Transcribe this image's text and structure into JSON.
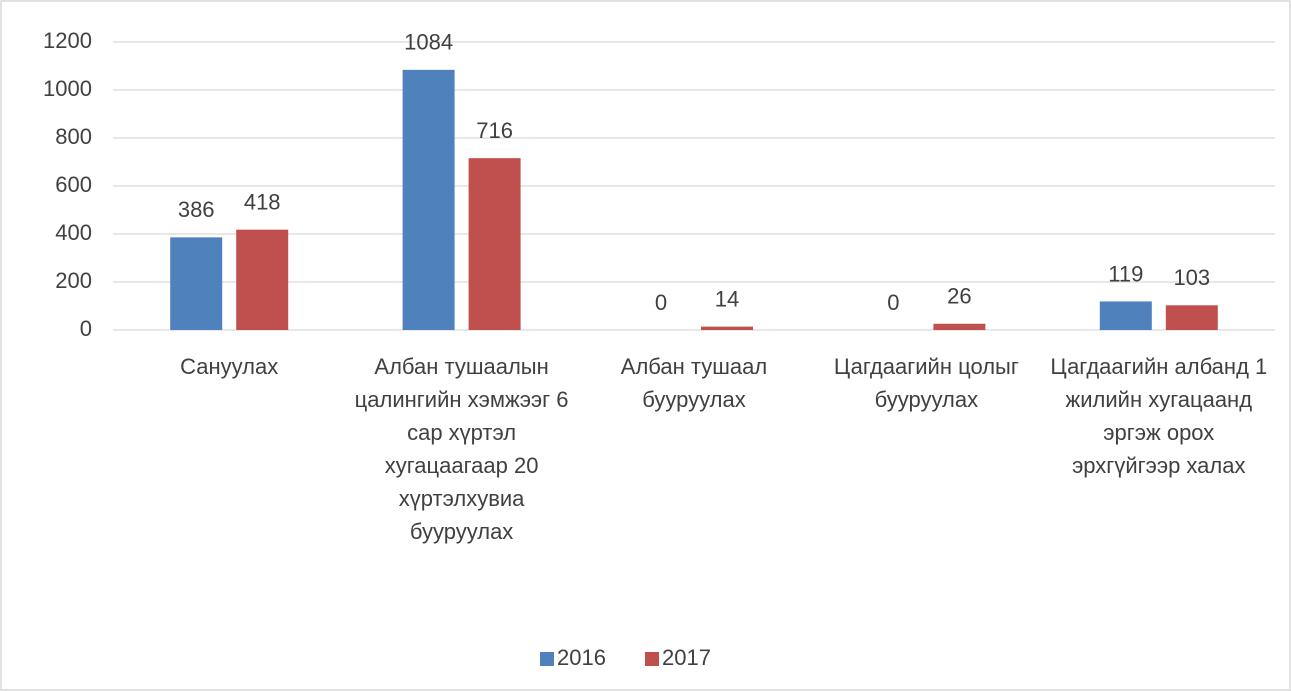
{
  "chart_data": {
    "type": "bar",
    "categories": [
      "Сануулах",
      "Албан тушаалын цалингийн хэмжээг 6 сар хүртэл хугацаагаар 20 хүртэлхувиа бууруулах",
      "Албан тушаал бууруулах",
      "Цагдаагийн цолыг бууруулах",
      "Цагдаагийн албанд 1 жилийн хугацаанд эргэж орох эрхгүйгээр халах"
    ],
    "series": [
      {
        "name": "2016",
        "color": "#4f81bd",
        "values": [
          386,
          1084,
          0,
          0,
          119
        ]
      },
      {
        "name": "2017",
        "color": "#c0504d",
        "values": [
          418,
          716,
          14,
          26,
          103
        ]
      }
    ],
    "ylim": [
      0,
      1200
    ],
    "yticks": [
      0,
      200,
      400,
      600,
      800,
      1000,
      1200
    ],
    "grid": true,
    "legend": "bottom"
  }
}
